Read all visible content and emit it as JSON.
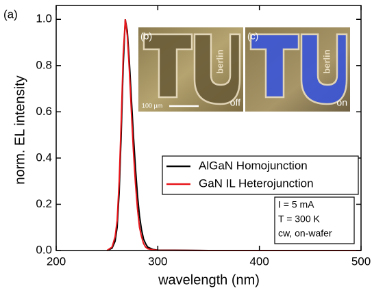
{
  "chart_data": {
    "type": "line",
    "panel_label": "(a)",
    "xlabel": "wavelength (nm)",
    "ylabel": "norm. EL intensity",
    "x": [
      250,
      255,
      258,
      260,
      262,
      264,
      266,
      268,
      270,
      272,
      274,
      276,
      278,
      280,
      282,
      284,
      286,
      288,
      290,
      295,
      300,
      350,
      400,
      450,
      500
    ],
    "series": [
      {
        "name": "AlGaN Homojunction",
        "color": "#000000",
        "values": [
          0,
          0.01,
          0.04,
          0.1,
          0.25,
          0.5,
          0.8,
          1.0,
          0.95,
          0.82,
          0.66,
          0.5,
          0.36,
          0.24,
          0.15,
          0.09,
          0.05,
          0.03,
          0.015,
          0.005,
          0.002,
          0,
          0,
          0,
          0
        ]
      },
      {
        "name": "GaN IL Heterojunction",
        "color": "#e8161b",
        "values": [
          0,
          0.015,
          0.06,
          0.13,
          0.3,
          0.56,
          0.85,
          1.0,
          0.93,
          0.78,
          0.6,
          0.43,
          0.29,
          0.18,
          0.1,
          0.06,
          0.03,
          0.015,
          0.008,
          0.003,
          0.001,
          0,
          0,
          0,
          0
        ]
      }
    ],
    "xlim": [
      200,
      500
    ],
    "xticks": [
      200,
      300,
      400,
      500
    ],
    "ylim": [
      0,
      1.06
    ],
    "yticks": [
      {
        "value": 0,
        "label": "0.0"
      },
      {
        "value": 0.2,
        "label": "0.2"
      },
      {
        "value": 0.4,
        "label": "0.4"
      },
      {
        "value": 0.6,
        "label": "0.6"
      },
      {
        "value": 0.8,
        "label": "0.8"
      },
      {
        "value": 1,
        "label": "1.0"
      }
    ],
    "legend": "right",
    "conditions": [
      "I  = 5 mA",
      "T = 300 K",
      "cw, on-wafer"
    ],
    "insets": [
      {
        "label": "(b)",
        "state": "off",
        "scale_bar": "100 µm",
        "logo_text": "berlin"
      },
      {
        "label": "(c)",
        "state": "on",
        "logo_text": "berlin"
      }
    ]
  }
}
